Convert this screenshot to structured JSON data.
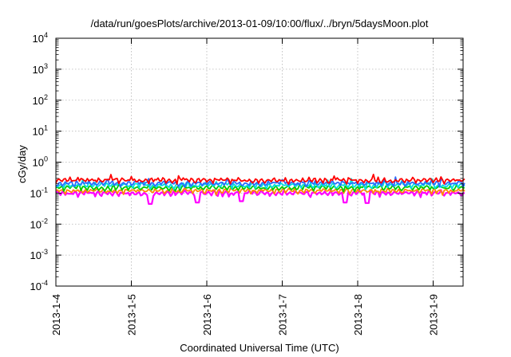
{
  "chart_data": {
    "type": "line",
    "title": "/data/run/goesPlots/archive/2013-01-09/10:00/flux/../bryn/5daysMoon.plot",
    "xlabel": "Coordinated Universal Time (UTC)",
    "ylabel": "cGy/day",
    "x_tick_labels": [
      "2013-1-4",
      "2013-1-5",
      "2013-1-6",
      "2013-1-7",
      "2013-1-8",
      "2013-1-9"
    ],
    "x_range": [
      "2013-01-04T00:00",
      "2013-01-09T10:00"
    ],
    "y_scale": "log",
    "ylim": [
      0.0001,
      10000
    ],
    "y_tick_labels": [
      {
        "base": "10",
        "exp": "-4"
      },
      {
        "base": "10",
        "exp": "-3"
      },
      {
        "base": "10",
        "exp": "-2"
      },
      {
        "base": "10",
        "exp": "-1"
      },
      {
        "base": "10",
        "exp": "0"
      },
      {
        "base": "10",
        "exp": "1"
      },
      {
        "base": "10",
        "exp": "2"
      },
      {
        "base": "10",
        "exp": "3"
      },
      {
        "base": "10",
        "exp": "4"
      }
    ],
    "grid": true,
    "series": [
      {
        "color": "#ff00ff",
        "typical": 0.1,
        "dips": [
          {
            "date": "2013-01-05T06:00",
            "value": 0.045
          },
          {
            "date": "2013-01-05T21:00",
            "value": 0.05
          },
          {
            "date": "2013-01-06T11:00",
            "value": 0.055
          },
          {
            "date": "2013-01-07T20:00",
            "value": 0.05
          },
          {
            "date": "2013-01-08T03:00",
            "value": 0.048
          }
        ]
      },
      {
        "color": "#ff8800",
        "typical": 0.12
      },
      {
        "color": "#00cc00",
        "typical": 0.15
      },
      {
        "color": "#00dddd",
        "typical": 0.18
      },
      {
        "color": "#2a6cff",
        "typical": 0.21
      },
      {
        "color": "#ff0000",
        "typical": 0.26
      }
    ]
  }
}
